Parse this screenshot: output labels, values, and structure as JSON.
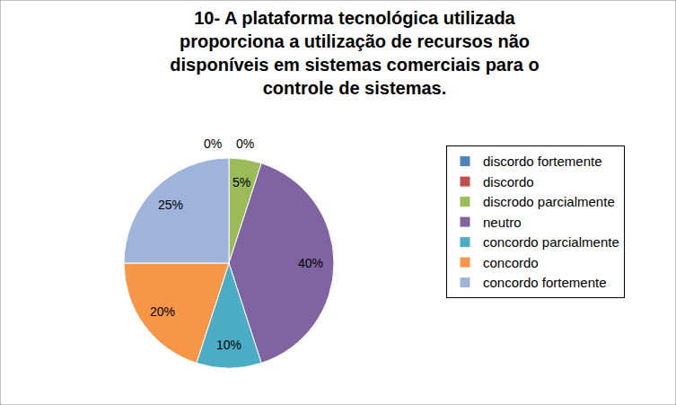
{
  "chart_data": {
    "type": "pie",
    "title": "10- A plataforma tecnológica utilizada proporciona a utilização de recursos não disponíveis em sistemas comerciais para o controle de sistemas.",
    "categories": [
      "discordo fortemente",
      "discordo",
      "discrodo parcialmente",
      "neutro",
      "concordo parcialmente",
      "concordo",
      "concordo fortemente"
    ],
    "values": [
      0,
      0,
      5,
      40,
      10,
      20,
      25
    ],
    "value_labels": [
      "0%",
      "0%",
      "5%",
      "40%",
      "10%",
      "20%",
      "25%"
    ],
    "colors": [
      "#4f81bd",
      "#c0504d",
      "#9bbb59",
      "#8064a2",
      "#4bacc6",
      "#f79646",
      "#9fb4db"
    ],
    "legend": "right",
    "data_labels": true
  }
}
